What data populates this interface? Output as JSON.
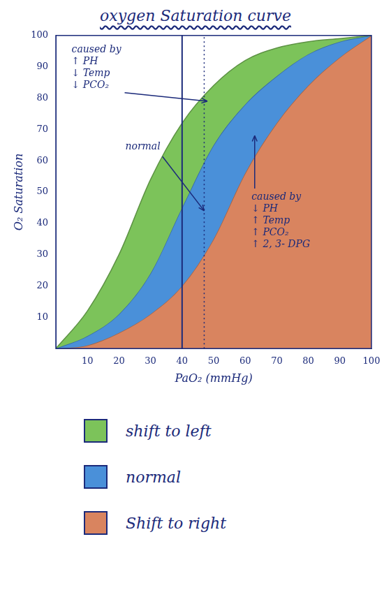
{
  "chart_data": {
    "type": "area",
    "title": "oxygen Saturation curve",
    "x_label": "PaO₂ (mmHg)",
    "y_label": "O₂ Saturation",
    "x": [
      0,
      10,
      20,
      30,
      40,
      50,
      60,
      70,
      80,
      90,
      100
    ],
    "series": [
      {
        "name": "shift to left",
        "color": "#7cc35a",
        "values": [
          0,
          12,
          30,
          54,
          72,
          84,
          92,
          96,
          98,
          99,
          100
        ]
      },
      {
        "name": "normal",
        "color": "#4a90d9",
        "values": [
          0,
          4,
          11,
          24,
          45,
          65,
          78,
          87,
          94,
          98,
          100
        ]
      },
      {
        "name": "Shift to right",
        "color": "#d9845f",
        "values": [
          0,
          1,
          5,
          11,
          20,
          35,
          56,
          72,
          84,
          93,
          100
        ]
      }
    ],
    "xlim": [
      0,
      100
    ],
    "xticks": [
      10,
      20,
      30,
      40,
      50,
      60,
      70,
      80,
      90,
      100
    ],
    "ylim": [
      0,
      100
    ],
    "yticks": [
      10,
      20,
      30,
      40,
      50,
      60,
      70,
      80,
      90,
      100
    ],
    "grid": false,
    "legend": "bottom",
    "vlines": [
      {
        "x": 40,
        "line_style": "solid"
      },
      {
        "x": 47,
        "line_style": "dotted"
      }
    ],
    "annotations": [
      {
        "lines": [
          "caused by",
          "↑ PH",
          "↓ Temp",
          "↓ PCO₂"
        ],
        "x": 5,
        "y": 97,
        "arrow_to": [
          48,
          79
        ]
      },
      {
        "lines": [
          "normal"
        ],
        "x": 22,
        "y": 66,
        "arrow_to": [
          47,
          44
        ]
      },
      {
        "lines": [
          "caused by",
          "↓ PH",
          "↑ Temp",
          "↑ PCO₂",
          "↑ 2, 3- DPG"
        ],
        "x": 62,
        "y": 50,
        "arrow_to": [
          63,
          68
        ]
      }
    ]
  }
}
